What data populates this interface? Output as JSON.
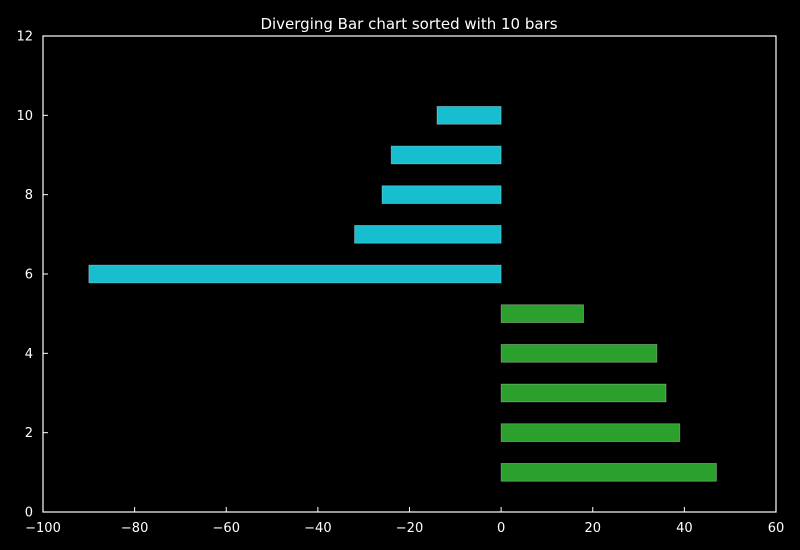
{
  "chart_data": {
    "type": "bar",
    "orientation": "horizontal",
    "title": "Diverging Bar chart sorted with 10 bars",
    "xlabel": "",
    "ylabel": "",
    "xlim": [
      -100,
      60
    ],
    "ylim": [
      0,
      12
    ],
    "xticks": [
      -100,
      -80,
      -60,
      -40,
      -20,
      0,
      20,
      40,
      60
    ],
    "yticks": [
      0,
      2,
      4,
      6,
      8,
      10,
      12
    ],
    "grid": false,
    "legend": "none",
    "bar_height": 0.45,
    "bars": [
      {
        "y": 1,
        "value": 47,
        "color": "#2ca02c"
      },
      {
        "y": 2,
        "value": 39,
        "color": "#2ca02c"
      },
      {
        "y": 3,
        "value": 36,
        "color": "#2ca02c"
      },
      {
        "y": 4,
        "value": 34,
        "color": "#2ca02c"
      },
      {
        "y": 5,
        "value": 18,
        "color": "#2ca02c"
      },
      {
        "y": 6,
        "value": -90,
        "color": "#17becf"
      },
      {
        "y": 7,
        "value": -32,
        "color": "#17becf"
      },
      {
        "y": 8,
        "value": -26,
        "color": "#17becf"
      },
      {
        "y": 9,
        "value": -24,
        "color": "#17becf"
      },
      {
        "y": 10,
        "value": -14,
        "color": "#17becf"
      }
    ],
    "colors": {
      "background": "#000000",
      "axes": "#ffffff",
      "positive": "#2ca02c",
      "negative": "#17becf"
    }
  }
}
